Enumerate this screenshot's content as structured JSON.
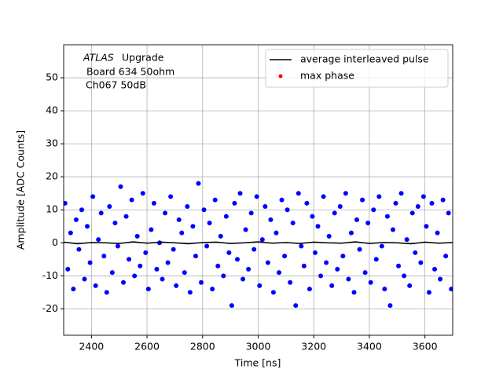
{
  "chart_data": {
    "type": "scatter",
    "xlabel": "Time [ns]",
    "ylabel": "Amplitude [ADC Counts]",
    "annotations": [
      "ATLAS",
      "Upgrade",
      "Board 634 50ohm",
      "Ch067 50dB"
    ],
    "xlim": [
      2300,
      3700
    ],
    "ylim": [
      -28,
      60
    ],
    "xticks": [
      2400,
      2600,
      2800,
      3000,
      3200,
      3400,
      3600
    ],
    "yticks": [
      -20,
      -10,
      0,
      10,
      20,
      30,
      40,
      50
    ],
    "grid": true,
    "legend": "upper right",
    "samples": {
      "color": "#0000ff",
      "x": [
        2305,
        2315,
        2325,
        2335,
        2345,
        2355,
        2365,
        2375,
        2385,
        2395,
        2405,
        2415,
        2425,
        2435,
        2445,
        2455,
        2465,
        2475,
        2485,
        2495,
        2505,
        2515,
        2525,
        2535,
        2545,
        2555,
        2565,
        2575,
        2585,
        2595,
        2605,
        2615,
        2625,
        2635,
        2645,
        2655,
        2665,
        2675,
        2685,
        2695,
        2705,
        2715,
        2725,
        2735,
        2745,
        2755,
        2765,
        2775,
        2785,
        2795,
        2805,
        2815,
        2825,
        2835,
        2845,
        2855,
        2865,
        2875,
        2885,
        2895,
        2905,
        2915,
        2925,
        2935,
        2945,
        2955,
        2965,
        2975,
        2985,
        2995,
        3005,
        3015,
        3025,
        3035,
        3045,
        3055,
        3065,
        3075,
        3085,
        3095,
        3105,
        3115,
        3125,
        3135,
        3145,
        3155,
        3165,
        3175,
        3185,
        3195,
        3205,
        3215,
        3225,
        3235,
        3245,
        3255,
        3265,
        3275,
        3285,
        3295,
        3305,
        3315,
        3325,
        3335,
        3345,
        3355,
        3365,
        3375,
        3385,
        3395,
        3405,
        3415,
        3425,
        3435,
        3445,
        3455,
        3465,
        3475,
        3485,
        3495,
        3505,
        3515,
        3525,
        3535,
        3545,
        3555,
        3565,
        3575,
        3585,
        3595,
        3605,
        3615,
        3625,
        3635,
        3645,
        3655,
        3665,
        3675,
        3685,
        3695
      ],
      "y": [
        12,
        -8,
        3,
        -14,
        7,
        -2,
        10,
        -11,
        5,
        -6,
        14,
        -13,
        1,
        9,
        -4,
        -15,
        11,
        -9,
        6,
        -1,
        17,
        -12,
        8,
        -5,
        13,
        -10,
        2,
        -7,
        15,
        -3,
        -14,
        4,
        12,
        -8,
        0,
        -11,
        9,
        -6,
        14,
        -2,
        -13,
        7,
        3,
        -9,
        11,
        -15,
        5,
        -4,
        18,
        -12,
        10,
        -1,
        6,
        -14,
        13,
        -7,
        2,
        -10,
        8,
        -3,
        -19,
        12,
        -5,
        15,
        -11,
        4,
        -8,
        9,
        -2,
        14,
        -13,
        1,
        11,
        -6,
        7,
        -15,
        3,
        -9,
        13,
        -4,
        10,
        -12,
        6,
        -19,
        15,
        -1,
        -7,
        12,
        -14,
        8,
        -3,
        5,
        -10,
        14,
        -6,
        2,
        -13,
        9,
        -8,
        11,
        -4,
        15,
        -11,
        3,
        -15,
        7,
        -2,
        13,
        -9,
        6,
        -12,
        10,
        -5,
        14,
        -1,
        -14,
        8,
        -19,
        4,
        12,
        -7,
        15,
        -10,
        1,
        -13,
        9,
        -3,
        11,
        -6,
        14,
        5,
        -15,
        12,
        -8,
        3,
        -11,
        13,
        -4,
        9,
        -14
      ]
    },
    "series": [
      {
        "name": "average interleaved pulse",
        "color": "#000000",
        "x": [
          2300,
          2350,
          2400,
          2450,
          2500,
          2550,
          2600,
          2650,
          2700,
          2750,
          2800,
          2850,
          2900,
          2950,
          3000,
          3050,
          3100,
          3150,
          3200,
          3250,
          3300,
          3350,
          3400,
          3450,
          3500,
          3550,
          3600,
          3650,
          3700
        ],
        "values": [
          0.2,
          -0.3,
          0.1,
          0,
          -0.2,
          0.3,
          -0.1,
          0.2,
          0,
          -0.3,
          0.1,
          0.2,
          -0.2,
          0,
          0.3,
          -0.1,
          0.1,
          -0.2,
          0.2,
          0,
          -0.1,
          0.3,
          -0.2,
          0.1,
          0,
          -0.3,
          0.2,
          -0.1,
          0.1
        ]
      },
      {
        "name": "max phase",
        "color": "#ff0000",
        "x": [],
        "values": []
      }
    ]
  }
}
